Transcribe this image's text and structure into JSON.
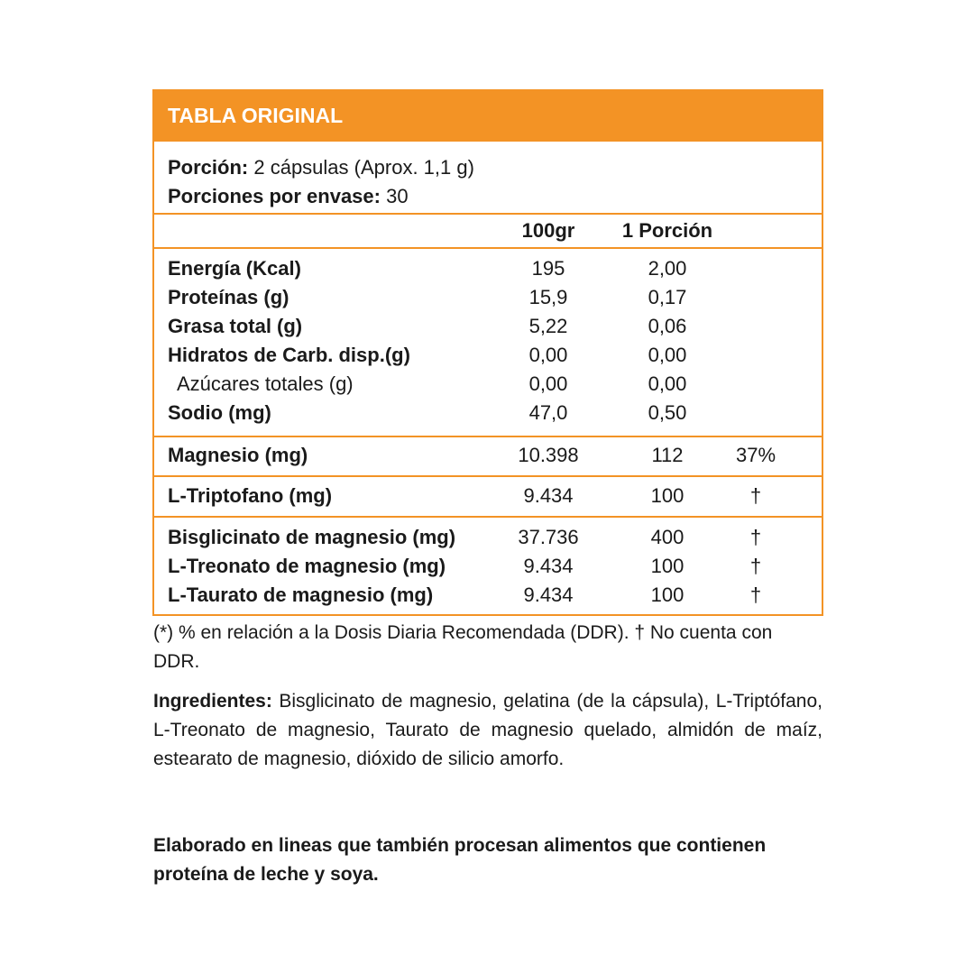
{
  "header": {
    "title": "TABLA ORIGINAL"
  },
  "serving": [
    {
      "label": "Porción:",
      "value": "2 cápsulas (Aprox. 1,1 g)"
    },
    {
      "label": "Porciones por envase:",
      "value": "30"
    }
  ],
  "table": {
    "columns": [
      "100gr",
      "1 Porción"
    ],
    "groups": [
      [
        {
          "label": "Energía (Kcal)",
          "per_100g": "195",
          "per_portion": "2,00"
        },
        {
          "label": "Proteínas (g)",
          "per_100g": "15,9",
          "per_portion": "0,17"
        },
        {
          "label": "Grasa total (g)",
          "per_100g": "5,22",
          "per_portion": "0,06"
        },
        {
          "label": "Hidratos de Carb. disp.(g)",
          "per_100g": "0,00",
          "per_portion": "0,00"
        },
        {
          "label": "Azúcares totales (g)",
          "per_100g": "0,00",
          "per_portion": "0,00",
          "sub": true
        },
        {
          "label": "Sodio (mg)",
          "per_100g": "47,0",
          "per_portion": "0,50"
        }
      ],
      [
        {
          "label": "Magnesio (mg)",
          "per_100g": "10.398",
          "per_portion": "112",
          "ddr": "37%"
        }
      ],
      [
        {
          "label": "L-Triptofano (mg)",
          "per_100g": "9.434",
          "per_portion": "100",
          "ddr": "†"
        }
      ],
      [
        {
          "label": "Bisglicinato de magnesio (mg)",
          "per_100g": "37.736",
          "per_portion": "400",
          "ddr": "†"
        },
        {
          "label": "L-Treonato de magnesio (mg)",
          "per_100g": "9.434",
          "per_portion": "100",
          "ddr": "†"
        },
        {
          "label": "L-Taurato de magnesio (mg)",
          "per_100g": "9.434",
          "per_portion": "100",
          "ddr": "†"
        }
      ]
    ]
  },
  "footnote": "(*) % en relación a la Dosis Diaria Recomendada (DDR). † No cuenta con DDR.",
  "ingredients": {
    "label": "Ingredientes:",
    "text": "Bisglicinato de magnesio, gelatina (de la cápsula), L-Triptófano, L-Treonato de magnesio, Taurato de magnesio quelado, almidón de maíz, estearato de magnesio, dióxido de silicio amorfo."
  },
  "allergens": "Elaborado en lineas que también procesan alimentos que contienen proteína de leche y soya."
}
